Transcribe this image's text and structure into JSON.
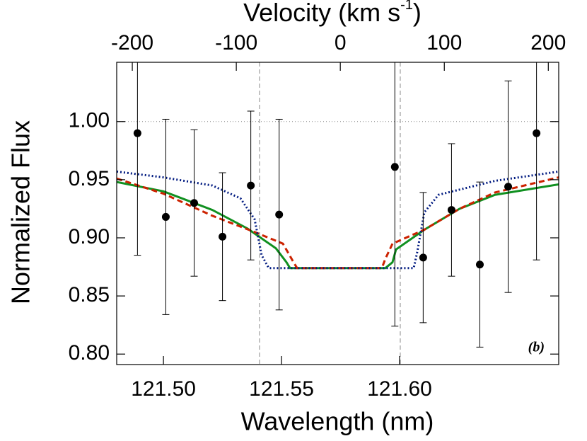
{
  "chart_data": {
    "type": "line",
    "xlabel": "Wavelength (nm)",
    "ylabel": "Normalized Flux",
    "x2label": {
      "text": "Velocity (km s",
      "sup": "-1",
      "end": ")"
    },
    "annotation": "(b)",
    "xlim": [
      121.4802,
      121.6674
    ],
    "xticks": [
      {
        "value": 121.5,
        "label": "121.50"
      },
      121.55,
      {
        "value": 121.6,
        "label": "121.60"
      }
    ],
    "x2lim": [
      -215,
      210
    ],
    "x2ticks": [
      -200,
      -100,
      0,
      100,
      200
    ],
    "ylim": [
      0.791,
      1.051
    ],
    "yticks": [
      {
        "value": 0.8,
        "label": "0.80"
      },
      0.85,
      {
        "value": 0.9,
        "label": "0.90"
      },
      0.95,
      {
        "value": 1.0,
        "label": "1.00"
      }
    ],
    "reference_lines": {
      "x": [
        121.5407,
        121.6003
      ],
      "y": [
        1.0
      ]
    },
    "series": [
      {
        "type": "line",
        "style": "solid",
        "color": "#109020",
        "x": [
          121.4802,
          121.5,
          121.5207,
          121.5356,
          121.5476,
          121.5521,
          121.5536,
          121.594,
          121.597,
          121.5985,
          121.6105,
          121.6254,
          121.6404,
          121.6674
        ],
        "values": [
          0.948,
          0.94,
          0.924,
          0.908,
          0.891,
          0.879,
          0.874,
          0.874,
          0.879,
          0.89,
          0.907,
          0.925,
          0.937,
          0.946
        ]
      },
      {
        "type": "line",
        "style": "dashed",
        "color": "#cc2200",
        "x": [
          121.4802,
          121.5,
          121.5207,
          121.5386,
          121.5506,
          121.5551,
          121.5566,
          121.5925,
          121.594,
          121.597,
          121.6105,
          121.6254,
          121.6404,
          121.6674
        ],
        "values": [
          0.951,
          0.938,
          0.919,
          0.905,
          0.895,
          0.879,
          0.874,
          0.874,
          0.882,
          0.895,
          0.907,
          0.925,
          0.939,
          0.952
        ]
      },
      {
        "type": "line",
        "style": "dotted",
        "color": "#001a80",
        "x": [
          121.4802,
          121.5,
          121.5207,
          121.5326,
          121.5386,
          121.5416,
          121.5446,
          121.606,
          121.6075,
          121.6105,
          121.6165,
          121.6404,
          121.6674
        ],
        "values": [
          0.957,
          0.952,
          0.945,
          0.934,
          0.916,
          0.885,
          0.874,
          0.874,
          0.888,
          0.922,
          0.937,
          0.949,
          0.957
        ]
      },
      {
        "type": "errorbar",
        "color": "#000000",
        "x": [
          121.489,
          121.501,
          121.513,
          121.525,
          121.537,
          121.549,
          121.598,
          121.61,
          121.622,
          121.634,
          121.646,
          121.658
        ],
        "values": [
          0.99,
          0.918,
          0.93,
          0.901,
          0.945,
          0.92,
          0.961,
          0.883,
          0.924,
          0.877,
          0.944,
          0.99
        ],
        "errors": [
          0.105,
          0.084,
          0.063,
          0.055,
          0.064,
          0.082,
          0.137,
          0.056,
          0.057,
          0.071,
          0.091,
          0.109
        ]
      }
    ]
  }
}
